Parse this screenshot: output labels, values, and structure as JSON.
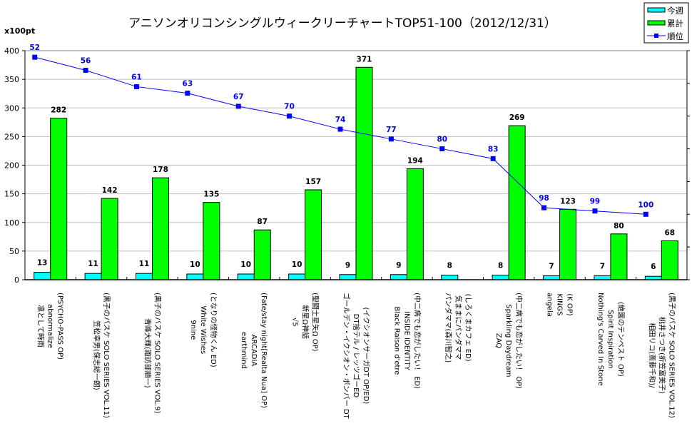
{
  "chart_data": {
    "type": "bar",
    "title": "アニソンオリコンシングルウィークリーチャートTOP51-100（2012/12/31）",
    "ylabel": "x100pt",
    "ylim": [
      0,
      400
    ],
    "yticks": [
      "0",
      "50",
      "100",
      "150",
      "200",
      "250",
      "300",
      "350",
      "400"
    ],
    "ytick_values": [
      0,
      50,
      100,
      150,
      200,
      250,
      300,
      350,
      400
    ],
    "y2lim": [
      50,
      120
    ],
    "y2_inverted": true,
    "y2ticks": [
      50,
      60,
      70,
      80,
      90,
      100,
      110,
      120
    ],
    "grid": true,
    "legend_position": "top-right",
    "categories": [
      [
        "凛として時雨",
        "abnormalize",
        "(PSYCHO-PASS OP)"
      ],
      [
        "笠松幸男(保志総一朗)",
        "(黒子のバスケ SOLO SERIES VOL.11)"
      ],
      [
        "青峰大輝(諏訪部順一)",
        "(黒子のバスケ SOLO SERIES VOL.9)"
      ],
      [
        "9nine",
        "White Wishes",
        "(となりの怪物くん ED)"
      ],
      [
        "earthmind",
        "ARCADIA",
        "(Fate/stay night[Realta Nua] OP)"
      ],
      [
        "√5",
        "新星Ω神話",
        "(聖闘士星矢Ω OP)"
      ],
      [
        "ゴールデン・イクシオン・ボンバー DT",
        "DT捨テル / レッツゴーED",
        "(イクシオンサーガDT OP/ED)"
      ],
      [
        "Black Raison d'etre",
        "INSIDE IDENTITY",
        "(中二病でも恋がしたい！ ED)"
      ],
      [
        "パンダママ(森川智之)",
        "気ままにパンダママ",
        "(しろくまカフェ ED)"
      ],
      [
        "ZAQ",
        "Sparkling Daydream",
        "(中二病でも恋がしたい！ OP)"
      ],
      [
        "angela",
        "KINGS",
        "(K OP)"
      ],
      [
        "Nothing's Carved In Stone",
        "Spirit Inspiration",
        "(絶園のテンペスト OP)"
      ],
      [
        "相田リコ(斎藤千和)/",
        "桃井さつき(折笠富美子)",
        "(黒子のバスケ SOLO SERIES VOL.12)"
      ]
    ],
    "series": [
      {
        "name": "今週",
        "type": "bar",
        "color": "#00ffff",
        "values": [
          13,
          11,
          11,
          10,
          10,
          10,
          9,
          9,
          8,
          8,
          7,
          7,
          6
        ],
        "labels": [
          "13",
          "11",
          "11",
          "10",
          "10",
          "10",
          "9",
          "9",
          "8",
          "8",
          "7",
          "7",
          "6"
        ]
      },
      {
        "name": "累計",
        "type": "bar",
        "color": "#00ff00",
        "values": [
          282,
          142,
          178,
          135,
          87,
          157,
          371,
          194,
          null,
          269,
          123,
          80,
          68
        ],
        "labels": [
          "282",
          "142",
          "178",
          "135",
          "87",
          "157",
          "371",
          "194",
          "",
          "269",
          "123",
          "80",
          "68"
        ]
      },
      {
        "name": "順位",
        "type": "line",
        "axis": "secondary",
        "color": "#0000ff",
        "values": [
          52,
          56,
          61,
          63,
          67,
          70,
          74,
          77,
          80,
          83,
          98,
          99,
          100
        ],
        "labels": [
          "52",
          "56",
          "61",
          "63",
          "67",
          "70",
          "74",
          "77",
          "80",
          "83",
          "98",
          "99",
          "100"
        ]
      }
    ]
  }
}
